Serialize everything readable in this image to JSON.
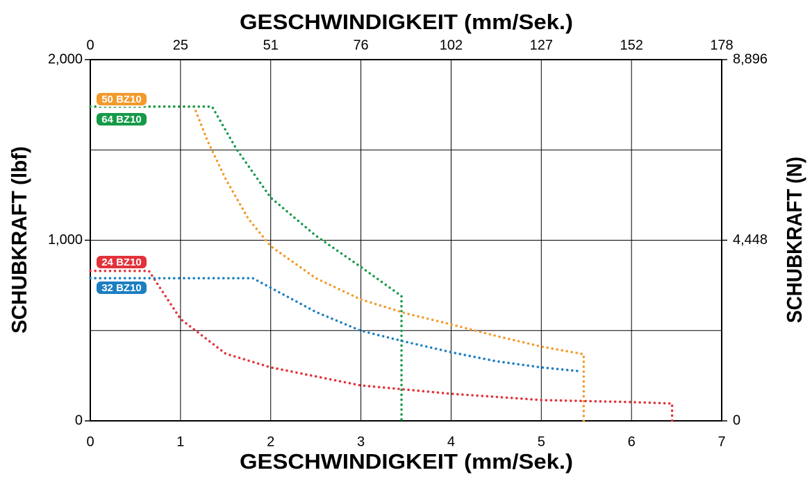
{
  "chart_data": {
    "type": "line",
    "xlabel": "GESCHWINDIGKEIT (mm/Sek.)",
    "x2label": "GESCHWINDIGKEIT (mm/Sek.)",
    "ylabel": "SCHUBKRAFT (lbf)",
    "y2label": "SCHUBKRAFT (N)",
    "xlim": [
      0,
      7
    ],
    "xticks": [
      0,
      1,
      2,
      3,
      4,
      5,
      6,
      7
    ],
    "x2lim": [
      0,
      177.8
    ],
    "x2ticks": [
      0,
      {
        "value": 25.4,
        "label": "25"
      },
      {
        "value": 50.8,
        "label": "51"
      },
      {
        "value": 76.2,
        "label": "76"
      },
      {
        "value": 101.6,
        "label": "102"
      },
      {
        "value": 127,
        "label": "127"
      },
      {
        "value": 152.4,
        "label": "152"
      },
      {
        "value": 177.8,
        "label": "178"
      }
    ],
    "ylim": [
      0,
      2000
    ],
    "yticks": [
      0,
      {
        "value": 1000,
        "label": "1,000"
      },
      {
        "value": 2000,
        "label": "2,000"
      }
    ],
    "ygrid": [
      0,
      500,
      1000,
      1500,
      2000
    ],
    "y2lim": [
      0,
      8896
    ],
    "y2ticks": [
      0,
      {
        "value": 4448,
        "label": "4,448"
      },
      {
        "value": 8896,
        "label": "8,896"
      }
    ],
    "grid": true,
    "series": [
      {
        "name": "50 BZ10",
        "color": "#f39a2b",
        "x": [
          0,
          1.15,
          1.3,
          1.5,
          1.75,
          2,
          2.5,
          3,
          3.5,
          4,
          4.5,
          5,
          5.47,
          5.47
        ],
        "values": [
          1740,
          1740,
          1550,
          1340,
          1120,
          967,
          790,
          672,
          595,
          534,
          470,
          411,
          369,
          0
        ]
      },
      {
        "name": "64 BZ10",
        "color": "#159a48",
        "x": [
          0,
          1.35,
          1.62,
          2,
          2.5,
          3,
          3.45,
          3.45
        ],
        "values": [
          1740,
          1740,
          1505,
          1236,
          1025,
          852,
          691,
          0
        ]
      },
      {
        "name": "24 BZ10",
        "color": "#e2323a",
        "x": [
          0,
          0.65,
          1,
          1.5,
          2,
          3,
          4,
          5,
          6,
          6.45,
          6.45
        ],
        "values": [
          830,
          830,
          564,
          372,
          296,
          196,
          150,
          115,
          104,
          96,
          0
        ]
      },
      {
        "name": "32 BZ10",
        "color": "#1b7fc1",
        "x": [
          0,
          1.8,
          2,
          2.5,
          3,
          3.5,
          4,
          4.5,
          5,
          5.4
        ],
        "values": [
          790,
          790,
          737,
          603,
          499,
          437,
          380,
          330,
          296,
          276
        ]
      }
    ]
  }
}
